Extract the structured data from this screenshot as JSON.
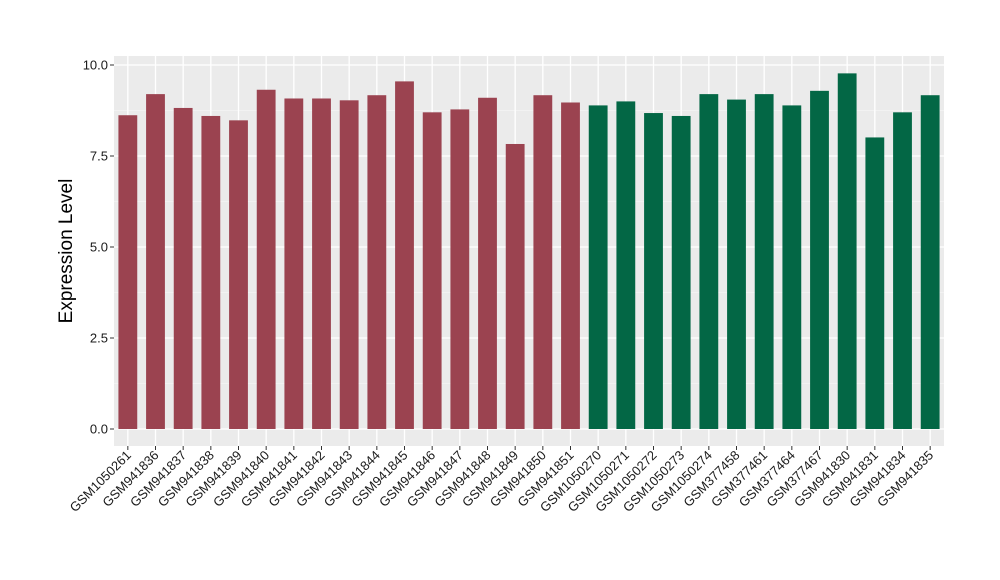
{
  "chart_data": {
    "type": "bar",
    "title": "",
    "xlabel": "",
    "ylabel": "Expression Level",
    "ylim": [
      0,
      10
    ],
    "yticks": [
      "0.0",
      "2.5",
      "5.0",
      "7.5",
      "10.0"
    ],
    "grid": true,
    "legend": "none",
    "panel_color": "#ebebeb",
    "group_colors": {
      "group1": "#9b4350",
      "group2": "#036745"
    },
    "categories": [
      "GSM1050261",
      "GSM941836",
      "GSM941837",
      "GSM941838",
      "GSM941839",
      "GSM941840",
      "GSM941841",
      "GSM941842",
      "GSM941843",
      "GSM941844",
      "GSM941845",
      "GSM941846",
      "GSM941847",
      "GSM941848",
      "GSM941849",
      "GSM941850",
      "GSM941851",
      "GSM1050270",
      "GSM1050271",
      "GSM1050272",
      "GSM1050273",
      "GSM1050274",
      "GSM377458",
      "GSM377461",
      "GSM377464",
      "GSM377467",
      "GSM941830",
      "GSM941831",
      "GSM941834",
      "GSM941835"
    ],
    "values": [
      8.62,
      9.2,
      8.82,
      8.6,
      8.48,
      9.32,
      9.08,
      9.08,
      9.03,
      9.17,
      9.55,
      8.7,
      8.78,
      9.1,
      7.83,
      9.17,
      8.97,
      8.89,
      9.0,
      8.68,
      8.6,
      9.2,
      9.05,
      9.2,
      8.89,
      9.29,
      9.77,
      8.01,
      8.7,
      9.17
    ],
    "groups": [
      "group1",
      "group1",
      "group1",
      "group1",
      "group1",
      "group1",
      "group1",
      "group1",
      "group1",
      "group1",
      "group1",
      "group1",
      "group1",
      "group1",
      "group1",
      "group1",
      "group1",
      "group2",
      "group2",
      "group2",
      "group2",
      "group2",
      "group2",
      "group2",
      "group2",
      "group2",
      "group2",
      "group2",
      "group2",
      "group2"
    ]
  }
}
